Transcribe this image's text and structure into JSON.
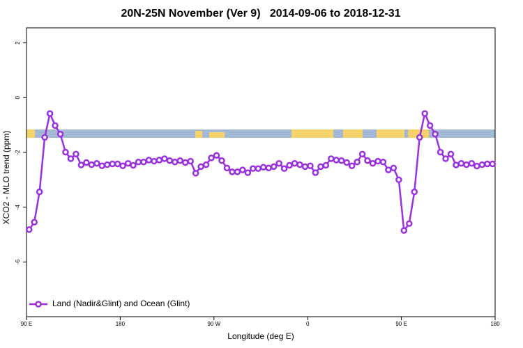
{
  "chart_data": {
    "type": "line",
    "title": "20N-25N November (Ver 9)   2014-09-06 to 2018-12-31",
    "xlabel": "Longitude (deg E)",
    "ylabel": "XCO2 - MLO trend (ppm)",
    "x": [
      92.5,
      97.5,
      102.5,
      107.5,
      112.5,
      117.5,
      122.5,
      127.5,
      132.5,
      137.5,
      142.5,
      147.5,
      152.5,
      157.5,
      162.5,
      167.5,
      172.5,
      177.5,
      182.5,
      187.5,
      192.5,
      197.5,
      202.5,
      207.5,
      212.5,
      217.5,
      222.5,
      227.5,
      232.5,
      237.5,
      242.5,
      247.5,
      252.5,
      257.5,
      262.5,
      267.5,
      272.5,
      277.5,
      282.5,
      287.5,
      292.5,
      297.5,
      302.5,
      307.5,
      312.5,
      317.5,
      322.5,
      327.5,
      332.5,
      337.5,
      342.5,
      347.5,
      352.5,
      357.5,
      362.5,
      367.5,
      372.5,
      377.5,
      382.5,
      387.5,
      392.5,
      397.5,
      402.5,
      407.5,
      412.5,
      417.5,
      422.5,
      427.5,
      432.5,
      437.5,
      442.5,
      447.5,
      452.5,
      457.5,
      462.5,
      467.5,
      472.5,
      477.5,
      482.5,
      487.5,
      492.5,
      497.5,
      502.5,
      507.5,
      512.5,
      517.5,
      522.5,
      527.5,
      532.5,
      537.5
    ],
    "series": [
      {
        "name": "Land (Nadir&Glint) and Ocean (Glint)",
        "color": "#9b30e0",
        "values": [
          -4.82,
          -4.55,
          -3.44,
          -1.45,
          -0.58,
          -1.02,
          -1.33,
          -1.99,
          -2.23,
          -2.06,
          -2.46,
          -2.37,
          -2.45,
          -2.4,
          -2.49,
          -2.45,
          -2.42,
          -2.42,
          -2.49,
          -2.4,
          -2.47,
          -2.35,
          -2.35,
          -2.28,
          -2.32,
          -2.28,
          -2.23,
          -2.3,
          -2.35,
          -2.3,
          -2.37,
          -2.32,
          -2.76,
          -2.52,
          -2.45,
          -2.2,
          -2.11,
          -2.3,
          -2.57,
          -2.71,
          -2.71,
          -2.64,
          -2.74,
          -2.59,
          -2.59,
          -2.54,
          -2.57,
          -2.52,
          -2.4,
          -2.59,
          -2.47,
          -2.4,
          -2.45,
          -2.52,
          -2.49,
          -2.74,
          -2.52,
          -2.47,
          -2.23,
          -2.28,
          -2.3,
          -2.37,
          -2.49,
          -2.35,
          -2.06,
          -2.3,
          -2.4,
          -2.32,
          -2.35,
          -2.64,
          -2.57,
          -3.0,
          -4.85,
          -4.6,
          -3.44,
          -1.45,
          -0.58,
          -1.02,
          -1.33,
          -1.99,
          -2.23,
          -2.06,
          -2.46,
          -2.4,
          -2.45,
          -2.4,
          -2.5,
          -2.45,
          -2.42,
          -2.42
        ]
      }
    ],
    "xlim": [
      90,
      540
    ],
    "xticks": [
      {
        "value": 90,
        "label": "90 E"
      },
      180,
      {
        "value": 270,
        "label": "90 W"
      },
      {
        "value": 360,
        "label": "0"
      },
      {
        "value": 450,
        "label": "90 E"
      },
      {
        "value": 540,
        "label": "180"
      }
    ],
    "ylim": [
      -8,
      2.55
    ],
    "yticks": [
      2,
      0,
      -2,
      -4,
      -6
    ],
    "legend": "lower left"
  }
}
